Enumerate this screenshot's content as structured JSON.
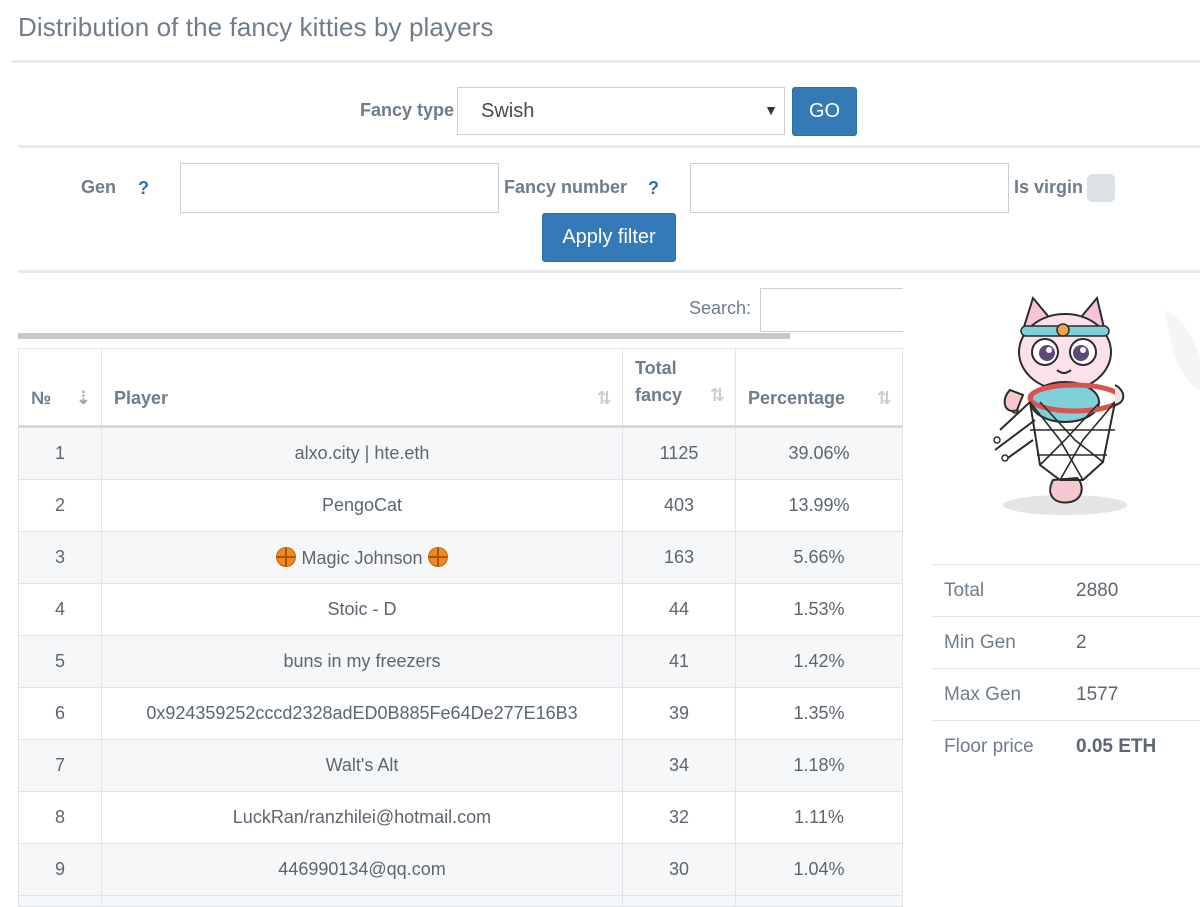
{
  "page": {
    "title": "Distribution of the fancy kitties by players"
  },
  "fancy_filter": {
    "label": "Fancy type",
    "selected": "Swish",
    "go_label": "GO"
  },
  "filters": {
    "gen_label": "Gen",
    "gen_help": "?",
    "fancy_number_label": "Fancy number",
    "fancy_number_help": "?",
    "virgin_label": "Is virgin",
    "apply_label": "Apply filter"
  },
  "search": {
    "label": "Search:"
  },
  "table": {
    "headers": {
      "no": "№",
      "player": "Player",
      "total_1": "Total",
      "total_2": "fancy",
      "percentage": "Percentage"
    },
    "rows": [
      {
        "no": "1",
        "player": "alxo.city | hte.eth",
        "total": "1125",
        "pct": "39.06%"
      },
      {
        "no": "2",
        "player": "PengoCat",
        "total": "403",
        "pct": "13.99%"
      },
      {
        "no": "3",
        "player": "Magic Johnson",
        "total": "163",
        "pct": "5.66%"
      },
      {
        "no": "4",
        "player": "Stoic - D",
        "total": "44",
        "pct": "1.53%"
      },
      {
        "no": "5",
        "player": "buns in my freezers",
        "total": "41",
        "pct": "1.42%"
      },
      {
        "no": "6",
        "player": "0x924359252cccd2328adED0B885Fe64De277E16B3",
        "total": "39",
        "pct": "1.35%"
      },
      {
        "no": "7",
        "player": "Walt's Alt",
        "total": "34",
        "pct": "1.18%"
      },
      {
        "no": "8",
        "player": "LuckRan/ranzhilei@hotmail.com",
        "total": "32",
        "pct": "1.11%"
      },
      {
        "no": "9",
        "player": "446990134@qq.com",
        "total": "30",
        "pct": "1.04%"
      }
    ]
  },
  "stats": {
    "total_label": "Total",
    "total_value": "2880",
    "min_gen_label": "Min Gen",
    "min_gen_value": "2",
    "max_gen_label": "Max Gen",
    "max_gen_value": "1577",
    "floor_label": "Floor price",
    "floor_value": "0.05 ETH"
  },
  "icons": {
    "kitty": "cat-in-basketball-hoop-illustration",
    "basketball": "basketball-icon",
    "sort": "sort-icon"
  }
}
